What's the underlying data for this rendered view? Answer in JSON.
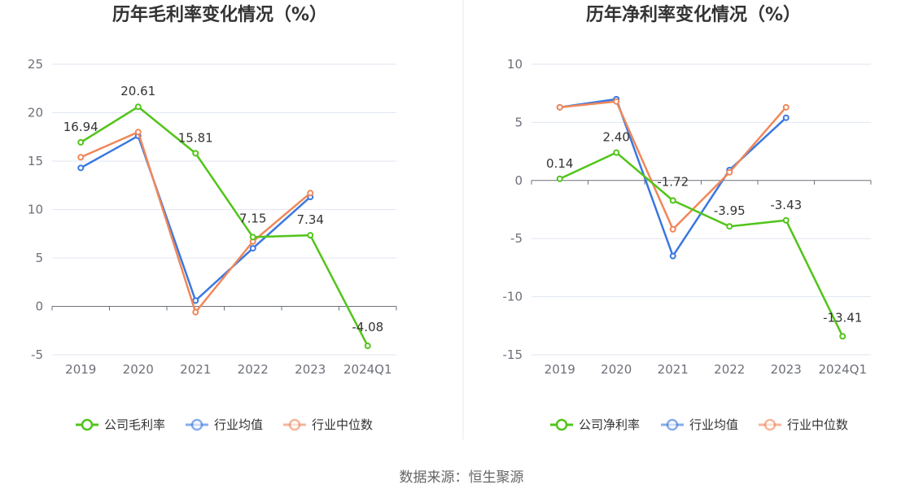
{
  "source_label": "数据来源：恒生聚源",
  "colors": {
    "company": "#52c41a",
    "industry_avg": "#3a78e0",
    "industry_median": "#f0875a",
    "grid": "#e0e6f1",
    "axis": "#6e7079",
    "divider": "#e8e8e8"
  },
  "chart_data": [
    {
      "type": "line",
      "title": "历年毛利率变化情况（%）",
      "categories": [
        "2019",
        "2020",
        "2021",
        "2022",
        "2023",
        "2024Q1"
      ],
      "ylim": [
        -5,
        25
      ],
      "yticks": [
        -5,
        0,
        5,
        10,
        15,
        20,
        25
      ],
      "grid": true,
      "legend_position": "bottom",
      "series": [
        {
          "name": "公司毛利率",
          "color": "#52c41a",
          "labeled": true,
          "values": [
            16.94,
            20.61,
            15.81,
            7.15,
            7.34,
            -4.08
          ],
          "labels": [
            "16.94",
            "20.61",
            "15.81",
            "7.15",
            "7.34",
            "-4.08"
          ]
        },
        {
          "name": "行业均值",
          "color": "#3a78e0",
          "labeled": false,
          "values": [
            14.3,
            17.6,
            0.6,
            6.0,
            11.3,
            null
          ]
        },
        {
          "name": "行业中位数",
          "color": "#f0875a",
          "labeled": false,
          "values": [
            15.4,
            18.0,
            -0.6,
            6.7,
            11.7,
            null
          ]
        }
      ]
    },
    {
      "type": "line",
      "title": "历年净利率变化情况（%）",
      "categories": [
        "2019",
        "2020",
        "2021",
        "2022",
        "2023",
        "2024Q1"
      ],
      "ylim": [
        -15,
        10
      ],
      "yticks": [
        -15,
        -10,
        -5,
        0,
        5,
        10
      ],
      "grid": true,
      "legend_position": "bottom",
      "series": [
        {
          "name": "公司净利率",
          "color": "#52c41a",
          "labeled": true,
          "values": [
            0.14,
            2.4,
            -1.72,
            -3.95,
            -3.43,
            -13.41
          ],
          "labels": [
            "0.14",
            "2.40",
            "-1.72",
            "-3.95",
            "-3.43",
            "-13.41"
          ]
        },
        {
          "name": "行业均值",
          "color": "#3a78e0",
          "labeled": false,
          "values": [
            6.3,
            7.0,
            -6.5,
            0.9,
            5.4,
            null
          ]
        },
        {
          "name": "行业中位数",
          "color": "#f0875a",
          "labeled": false,
          "values": [
            6.3,
            6.8,
            -4.2,
            0.7,
            6.3,
            null
          ]
        }
      ]
    }
  ]
}
